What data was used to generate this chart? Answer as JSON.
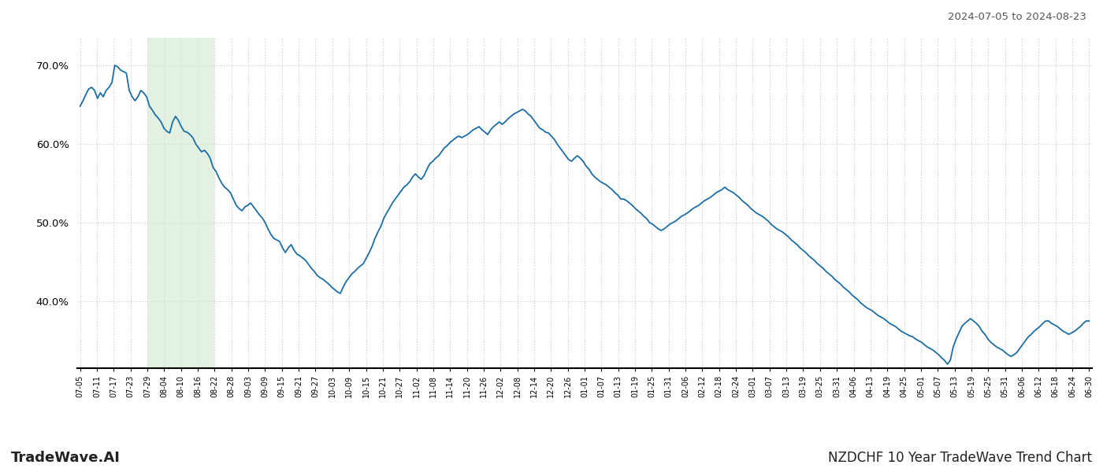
{
  "title_top_right": "2024-07-05 to 2024-08-23",
  "title_bottom_left": "TradeWave.AI",
  "title_bottom_right": "NZDCHF 10 Year TradeWave Trend Chart",
  "line_color": "#1a6ea8",
  "line_width": 1.3,
  "shade_color": "#d4ead4",
  "shade_alpha": 0.65,
  "background_color": "#ffffff",
  "grid_color": "#cccccc",
  "grid_style": ":",
  "ylim": [
    0.315,
    0.735
  ],
  "yticks": [
    0.4,
    0.5,
    0.6,
    0.7
  ],
  "x_labels": [
    "07-05",
    "07-11",
    "07-17",
    "07-23",
    "07-29",
    "08-04",
    "08-10",
    "08-16",
    "08-22",
    "08-28",
    "09-03",
    "09-09",
    "09-15",
    "09-21",
    "09-27",
    "10-03",
    "10-09",
    "10-15",
    "10-21",
    "10-27",
    "11-02",
    "11-08",
    "11-14",
    "11-20",
    "11-26",
    "12-02",
    "12-08",
    "12-14",
    "12-20",
    "12-26",
    "01-01",
    "01-07",
    "01-13",
    "01-19",
    "01-25",
    "01-31",
    "02-06",
    "02-12",
    "02-18",
    "02-24",
    "03-01",
    "03-07",
    "03-13",
    "03-19",
    "03-25",
    "03-31",
    "04-06",
    "04-13",
    "04-19",
    "04-25",
    "05-01",
    "05-07",
    "05-13",
    "05-19",
    "05-25",
    "05-31",
    "06-06",
    "06-12",
    "06-18",
    "06-24",
    "06-30"
  ],
  "shade_label_start": "07-29",
  "shade_label_end": "08-22",
  "values": [
    0.648,
    0.655,
    0.663,
    0.67,
    0.672,
    0.668,
    0.658,
    0.665,
    0.66,
    0.668,
    0.672,
    0.678,
    0.7,
    0.698,
    0.694,
    0.692,
    0.69,
    0.668,
    0.66,
    0.655,
    0.66,
    0.668,
    0.665,
    0.66,
    0.648,
    0.643,
    0.637,
    0.633,
    0.628,
    0.62,
    0.616,
    0.614,
    0.628,
    0.635,
    0.63,
    0.622,
    0.616,
    0.615,
    0.612,
    0.608,
    0.6,
    0.595,
    0.59,
    0.592,
    0.588,
    0.582,
    0.57,
    0.565,
    0.557,
    0.55,
    0.545,
    0.542,
    0.538,
    0.53,
    0.522,
    0.518,
    0.515,
    0.52,
    0.522,
    0.525,
    0.52,
    0.515,
    0.51,
    0.506,
    0.5,
    0.492,
    0.485,
    0.48,
    0.478,
    0.476,
    0.468,
    0.462,
    0.468,
    0.472,
    0.465,
    0.46,
    0.458,
    0.455,
    0.452,
    0.447,
    0.442,
    0.438,
    0.433,
    0.43,
    0.428,
    0.425,
    0.422,
    0.418,
    0.415,
    0.412,
    0.41,
    0.418,
    0.425,
    0.43,
    0.435,
    0.438,
    0.442,
    0.445,
    0.448,
    0.455,
    0.462,
    0.47,
    0.48,
    0.488,
    0.495,
    0.505,
    0.512,
    0.518,
    0.525,
    0.53,
    0.535,
    0.54,
    0.545,
    0.548,
    0.552,
    0.558,
    0.562,
    0.558,
    0.555,
    0.56,
    0.568,
    0.575,
    0.578,
    0.582,
    0.585,
    0.59,
    0.595,
    0.598,
    0.602,
    0.605,
    0.608,
    0.61,
    0.608,
    0.61,
    0.612,
    0.615,
    0.618,
    0.62,
    0.622,
    0.618,
    0.615,
    0.612,
    0.618,
    0.622,
    0.625,
    0.628,
    0.625,
    0.628,
    0.632,
    0.635,
    0.638,
    0.64,
    0.642,
    0.644,
    0.642,
    0.638,
    0.635,
    0.63,
    0.625,
    0.62,
    0.618,
    0.615,
    0.614,
    0.61,
    0.606,
    0.6,
    0.595,
    0.59,
    0.585,
    0.58,
    0.578,
    0.582,
    0.585,
    0.582,
    0.578,
    0.572,
    0.568,
    0.562,
    0.558,
    0.555,
    0.552,
    0.55,
    0.548,
    0.545,
    0.542,
    0.538,
    0.535,
    0.53,
    0.53,
    0.528,
    0.525,
    0.522,
    0.518,
    0.515,
    0.512,
    0.508,
    0.505,
    0.5,
    0.498,
    0.495,
    0.492,
    0.49,
    0.492,
    0.495,
    0.498,
    0.5,
    0.502,
    0.505,
    0.508,
    0.51,
    0.512,
    0.515,
    0.518,
    0.52,
    0.522,
    0.525,
    0.528,
    0.53,
    0.532,
    0.535,
    0.538,
    0.54,
    0.542,
    0.545,
    0.542,
    0.54,
    0.538,
    0.535,
    0.532,
    0.528,
    0.525,
    0.522,
    0.518,
    0.515,
    0.512,
    0.51,
    0.508,
    0.505,
    0.502,
    0.498,
    0.495,
    0.492,
    0.49,
    0.488,
    0.485,
    0.482,
    0.478,
    0.475,
    0.472,
    0.468,
    0.465,
    0.462,
    0.458,
    0.455,
    0.452,
    0.448,
    0.445,
    0.442,
    0.438,
    0.435,
    0.432,
    0.428,
    0.425,
    0.422,
    0.418,
    0.415,
    0.412,
    0.408,
    0.405,
    0.402,
    0.398,
    0.395,
    0.392,
    0.39,
    0.388,
    0.385,
    0.382,
    0.38,
    0.378,
    0.375,
    0.372,
    0.37,
    0.368,
    0.365,
    0.362,
    0.36,
    0.358,
    0.356,
    0.355,
    0.352,
    0.35,
    0.348,
    0.345,
    0.342,
    0.34,
    0.338,
    0.335,
    0.332,
    0.328,
    0.325,
    0.32,
    0.325,
    0.342,
    0.352,
    0.36,
    0.368,
    0.372,
    0.375,
    0.378,
    0.375,
    0.372,
    0.368,
    0.362,
    0.358,
    0.352,
    0.348,
    0.345,
    0.342,
    0.34,
    0.338,
    0.335,
    0.332,
    0.33,
    0.332,
    0.335,
    0.34,
    0.345,
    0.35,
    0.355,
    0.358,
    0.362,
    0.365,
    0.368,
    0.372,
    0.375,
    0.375,
    0.372,
    0.37,
    0.368,
    0.365,
    0.362,
    0.36,
    0.358,
    0.36,
    0.362,
    0.365,
    0.368,
    0.372,
    0.375,
    0.375
  ]
}
